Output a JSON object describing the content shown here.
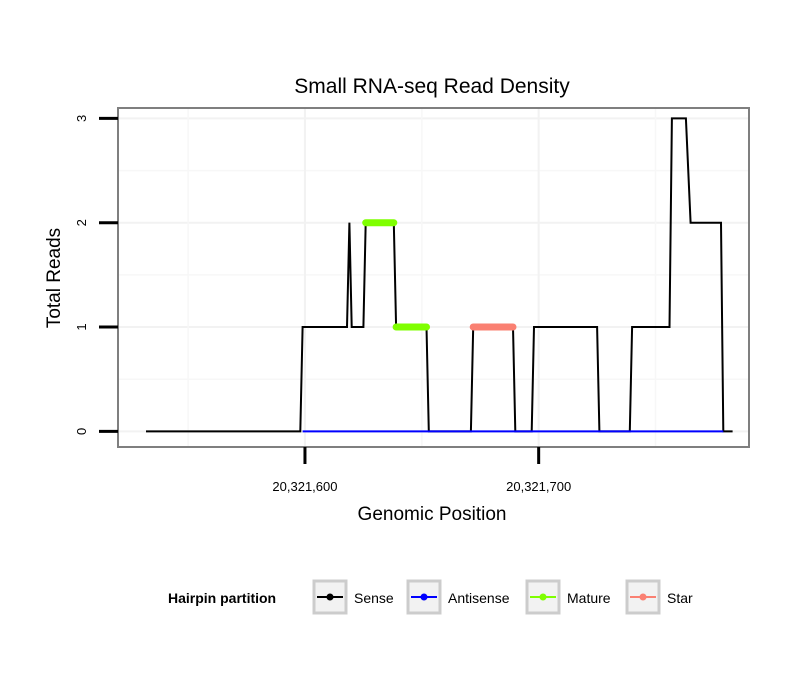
{
  "chart_data": {
    "type": "line",
    "title": "Small RNA-seq Read Density",
    "xlabel": "Genomic Position",
    "ylabel": "Total Reads",
    "xlim": [
      20321520,
      20321790
    ],
    "ylim": [
      -0.15,
      3.1
    ],
    "x_ticks": [
      20321600,
      20321700
    ],
    "x_tick_labels": [
      "20,321,600",
      "20,321,700"
    ],
    "y_ticks": [
      0,
      1,
      2,
      3
    ],
    "y_tick_labels": [
      "0",
      "1",
      "2",
      "3"
    ],
    "grid": true,
    "legend_position": "bottom",
    "legend_title": "Hairpin partition",
    "series": [
      {
        "name": "Sense",
        "color": "#000000",
        "points": [
          [
            20321532,
            0
          ],
          [
            20321598,
            0
          ],
          [
            20321599,
            1
          ],
          [
            20321618,
            1
          ],
          [
            20321619,
            2
          ],
          [
            20321620,
            1
          ],
          [
            20321625,
            1
          ],
          [
            20321626,
            2
          ],
          [
            20321638,
            2
          ],
          [
            20321639,
            1
          ],
          [
            20321652,
            1
          ],
          [
            20321653,
            0
          ],
          [
            20321671,
            0
          ],
          [
            20321672,
            1
          ],
          [
            20321689,
            1
          ],
          [
            20321690,
            0
          ],
          [
            20321697,
            0
          ],
          [
            20321698,
            1
          ],
          [
            20321725,
            1
          ],
          [
            20321726,
            0
          ],
          [
            20321739,
            0
          ],
          [
            20321740,
            1
          ],
          [
            20321756,
            1
          ],
          [
            20321757,
            3
          ],
          [
            20321763,
            3
          ],
          [
            20321765,
            2
          ],
          [
            20321778,
            2
          ],
          [
            20321779,
            0
          ],
          [
            20321783,
            0
          ]
        ]
      },
      {
        "name": "Antisense",
        "color": "#0000ff",
        "points": [
          [
            20321599,
            0
          ],
          [
            20321779,
            0
          ]
        ]
      },
      {
        "name": "Mature",
        "color": "#7fff00",
        "segments": [
          [
            [
              20321626,
              2
            ],
            [
              20321638,
              2
            ]
          ],
          [
            [
              20321639,
              1
            ],
            [
              20321652,
              1
            ]
          ]
        ]
      },
      {
        "name": "Star",
        "color": "#fa8072",
        "segments": [
          [
            [
              20321672,
              1
            ],
            [
              20321689,
              1
            ]
          ]
        ]
      }
    ]
  }
}
